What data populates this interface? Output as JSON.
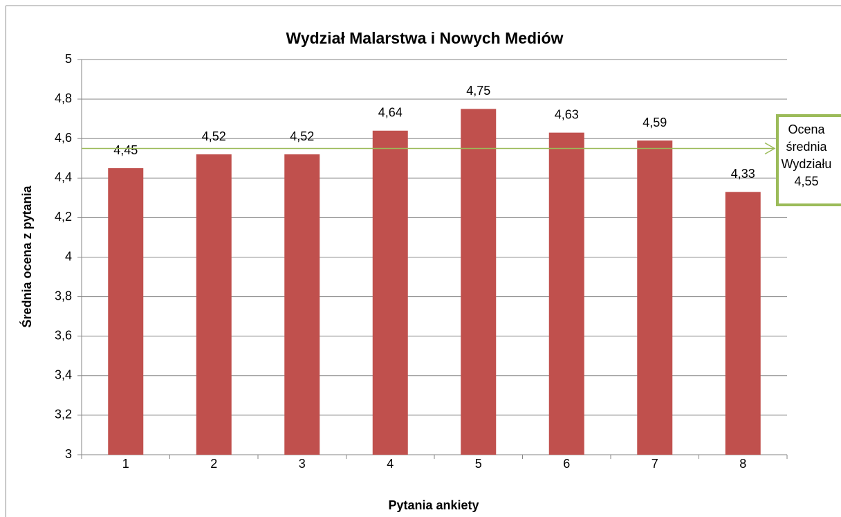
{
  "chart_data": {
    "type": "bar",
    "title": "Wydział Malarstwa i Nowych Mediów",
    "x_label": "Pytania ankiety",
    "y_label": "Średnia ocena z pytania",
    "categories": [
      "1",
      "2",
      "3",
      "4",
      "5",
      "6",
      "7",
      "8"
    ],
    "values": [
      4.45,
      4.52,
      4.52,
      4.64,
      4.75,
      4.63,
      4.59,
      4.33
    ],
    "value_labels": [
      "4,45",
      "4,52",
      "4,52",
      "4,64",
      "4,75",
      "4,63",
      "4,59",
      "4,33"
    ],
    "color": "#c0504d",
    "ylim": [
      3,
      5
    ],
    "yticks": [
      3,
      {
        "value": 3.2,
        "label": "3,2"
      },
      {
        "value": 3.4,
        "label": "3,4"
      },
      {
        "value": 3.6,
        "label": "3,6"
      },
      {
        "value": 3.8,
        "label": "3,8"
      },
      4,
      {
        "value": 4.2,
        "label": "4,2"
      },
      {
        "value": 4.4,
        "label": "4,4"
      },
      {
        "value": 4.6,
        "label": "4,6"
      },
      {
        "value": 4.8,
        "label": "4,8"
      },
      5
    ],
    "grid": true,
    "annotation": {
      "lines": [
        "Ocena",
        "średnia",
        "Wydziału"
      ],
      "value": 4.55,
      "value_label": "4,55",
      "color": "#9bbb59"
    }
  }
}
